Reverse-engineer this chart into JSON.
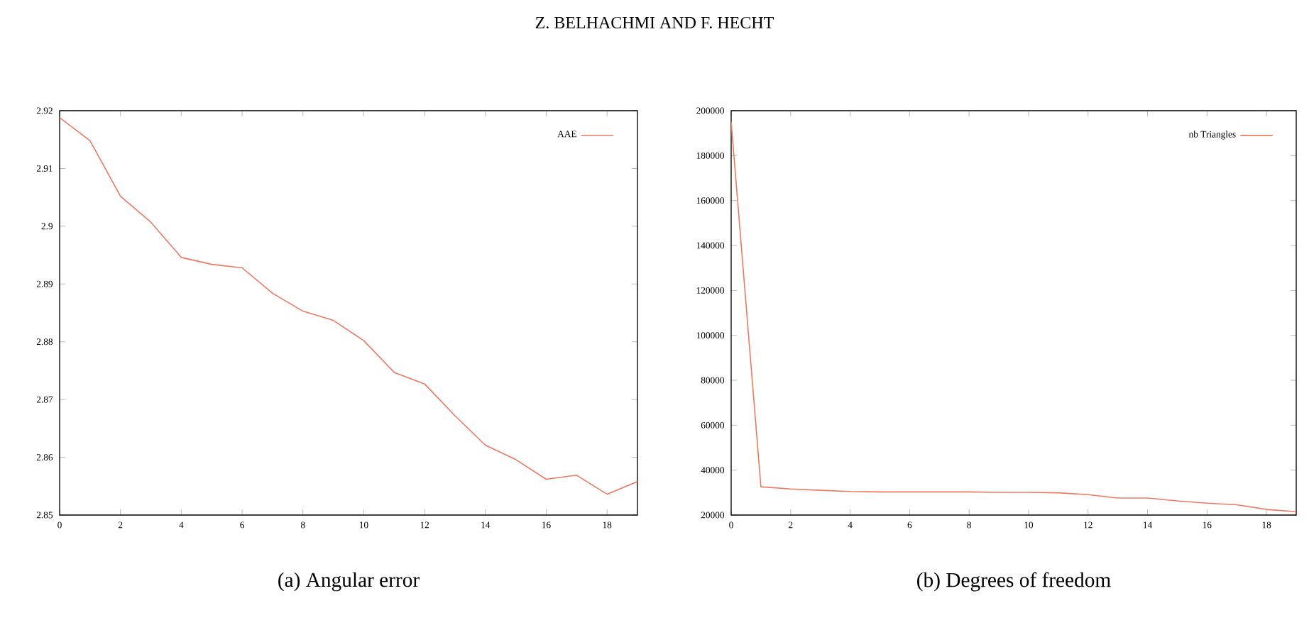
{
  "chart_data": [
    {
      "type": "line",
      "title": "(a) Angular error",
      "annotations": [
        "Z. BELHACHMI AND F. HECHT"
      ],
      "x": [
        0,
        1,
        2,
        3,
        4,
        5,
        6,
        7,
        8,
        9,
        10,
        11,
        12,
        13,
        14,
        15,
        16,
        17,
        18,
        19
      ],
      "series": [
        {
          "name": "AAE",
          "color": "#f07860",
          "values": [
            2.9188,
            2.9148,
            2.9052,
            2.9007,
            2.8946,
            2.8934,
            2.8928,
            2.8884,
            2.8853,
            2.8837,
            2.8802,
            2.8747,
            2.8727,
            2.8672,
            2.8621,
            2.8596,
            2.8562,
            2.8569,
            2.8536,
            2.8558
          ]
        }
      ],
      "xlim": [
        0,
        19
      ],
      "xticks": [
        0,
        2,
        4,
        6,
        8,
        10,
        12,
        14,
        16,
        18
      ],
      "ylim": [
        2.85,
        2.92
      ],
      "yticks": [
        2.85,
        2.86,
        2.87,
        2.88,
        2.89,
        2.9,
        2.91,
        2.92
      ],
      "legend": "top right"
    },
    {
      "type": "line",
      "title": "(b) Degrees of freedom",
      "x": [
        0,
        1,
        2,
        3,
        4,
        5,
        6,
        7,
        8,
        9,
        10,
        11,
        12,
        13,
        14,
        15,
        16,
        17,
        18,
        19
      ],
      "series": [
        {
          "name": "nb Triangles",
          "color": "#f07860",
          "values": [
            195000,
            32600,
            31600,
            31000,
            30500,
            30300,
            30300,
            30300,
            30300,
            30100,
            30100,
            29900,
            29100,
            27600,
            27600,
            26300,
            25300,
            24600,
            22500,
            21500
          ]
        }
      ],
      "xlim": [
        0,
        19
      ],
      "xticks": [
        0,
        2,
        4,
        6,
        8,
        10,
        12,
        14,
        16,
        18
      ],
      "ylim": [
        20000,
        200000
      ],
      "yticks": [
        20000,
        40000,
        60000,
        80000,
        100000,
        120000,
        140000,
        160000,
        180000,
        200000
      ],
      "legend": "top right"
    }
  ]
}
